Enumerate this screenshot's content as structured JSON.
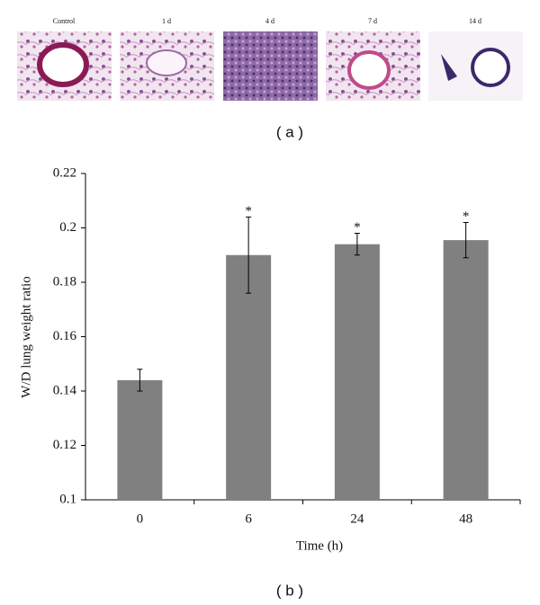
{
  "panels": {
    "a": {
      "label": "( a )",
      "images": [
        "Control",
        "1 d",
        "4 d",
        "7 d",
        "14 d"
      ]
    },
    "b": {
      "label": "( b )"
    }
  },
  "chart_data": {
    "type": "bar",
    "x_label": "Time (h)",
    "y_label": "W/D lung weight ratio",
    "categories": [
      "0",
      "6",
      "24",
      "48"
    ],
    "values": [
      0.144,
      0.19,
      0.194,
      0.1955
    ],
    "errors": [
      0.004,
      0.014,
      0.004,
      0.0065
    ],
    "annotations": [
      null,
      "*",
      "*",
      "*"
    ],
    "color": "#808080",
    "ylim": [
      0.1,
      0.22
    ],
    "yticks": [
      0.1,
      0.12,
      0.14,
      0.16,
      0.18,
      0.2,
      0.22
    ],
    "grid": false
  }
}
